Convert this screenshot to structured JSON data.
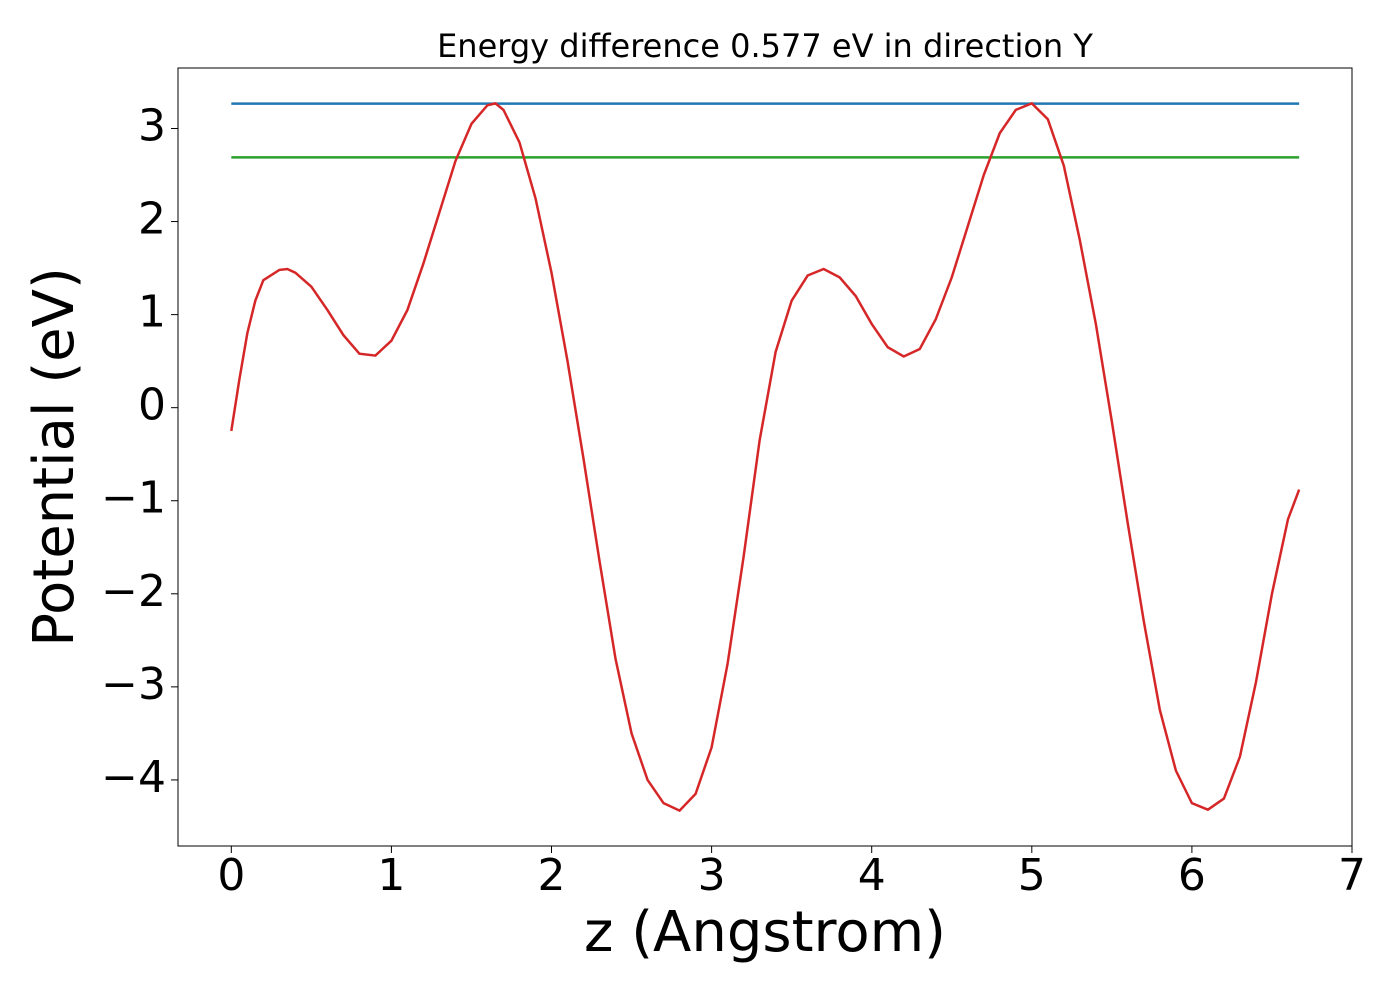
{
  "chart_data": {
    "type": "line",
    "title": "Energy difference 0.577 eV in direction Y",
    "xlabel": "z (Angstrom)",
    "ylabel": "Potential (eV)",
    "xlim": [
      -0.333,
      7.0
    ],
    "ylim": [
      -4.71,
      3.65
    ],
    "xticks": [
      0,
      1,
      2,
      3,
      4,
      5,
      6,
      7
    ],
    "yticks": [
      {
        "value": -4,
        "label": "−4"
      },
      {
        "value": -3,
        "label": "−3"
      },
      {
        "value": -2,
        "label": "−2"
      },
      {
        "value": -1,
        "label": "−1"
      },
      0,
      1,
      2,
      3
    ],
    "series": [
      {
        "color": "#1f77b4",
        "x": [
          0,
          6.67
        ],
        "values": [
          3.267,
          3.267
        ]
      },
      {
        "color": "#2ca02c",
        "x": [
          0,
          6.67
        ],
        "values": [
          2.69,
          2.69
        ]
      },
      {
        "color": "#d62728",
        "x": [
          0,
          0.05,
          0.1,
          0.15,
          0.2,
          0.3,
          0.35,
          0.4,
          0.5,
          0.6,
          0.7,
          0.8,
          0.9,
          1.0,
          1.1,
          1.2,
          1.3,
          1.4,
          1.5,
          1.6,
          1.65,
          1.7,
          1.8,
          1.9,
          2.0,
          2.1,
          2.2,
          2.3,
          2.4,
          2.5,
          2.6,
          2.7,
          2.8,
          2.9,
          3.0,
          3.1,
          3.2,
          3.3,
          3.4,
          3.5,
          3.6,
          3.7,
          3.8,
          3.9,
          4.0,
          4.1,
          4.2,
          4.3,
          4.4,
          4.5,
          4.6,
          4.7,
          4.8,
          4.9,
          5.0,
          5.1,
          5.2,
          5.3,
          5.4,
          5.5,
          5.6,
          5.7,
          5.8,
          5.9,
          6.0,
          6.1,
          6.2,
          6.3,
          6.4,
          6.5,
          6.6,
          6.67
        ],
        "values": [
          -0.25,
          0.3,
          0.8,
          1.15,
          1.37,
          1.48,
          1.49,
          1.45,
          1.3,
          1.05,
          0.78,
          0.58,
          0.56,
          0.72,
          1.05,
          1.55,
          2.1,
          2.65,
          3.05,
          3.25,
          3.27,
          3.2,
          2.85,
          2.25,
          1.45,
          0.5,
          -0.55,
          -1.65,
          -2.7,
          -3.5,
          -4.0,
          -4.25,
          -4.33,
          -4.15,
          -3.65,
          -2.75,
          -1.6,
          -0.35,
          0.6,
          1.15,
          1.42,
          1.49,
          1.4,
          1.2,
          0.9,
          0.65,
          0.55,
          0.63,
          0.95,
          1.4,
          1.95,
          2.5,
          2.95,
          3.2,
          3.27,
          3.1,
          2.6,
          1.8,
          0.9,
          -0.15,
          -1.25,
          -2.3,
          -3.25,
          -3.9,
          -4.25,
          -4.32,
          -4.2,
          -3.75,
          -2.95,
          -2.0,
          -1.2,
          -0.88
        ]
      }
    ]
  }
}
